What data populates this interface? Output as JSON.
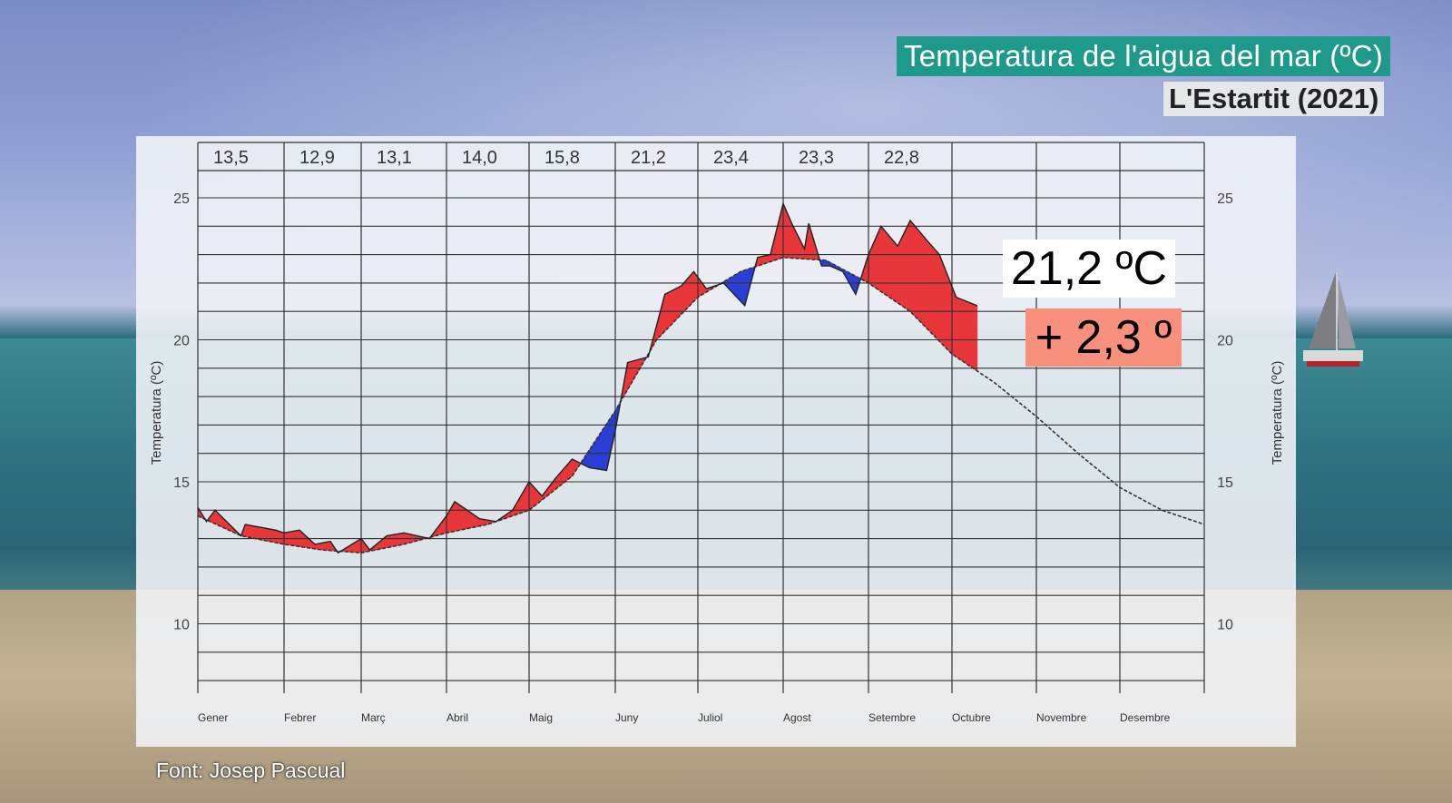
{
  "header": {
    "title": "Temperatura de l'aigua del mar (ºC)",
    "subtitle": "L'Estartit (2021)"
  },
  "callouts": {
    "current_temperature": "21,2 ºC",
    "anomaly": "+ 2,3 º"
  },
  "credit": "Font: Josep Pascual",
  "colors": {
    "title_bg": "#1f9a8a",
    "above_fill": "#e8363a",
    "below_fill": "#2b3fd6",
    "anomaly_bg": "#f7907c"
  },
  "chart_data": {
    "type": "area",
    "title": "Temperatura de l'aigua del mar (ºC) — L'Estartit (2021)",
    "xlabel": "",
    "ylabel": "Temperatura (ºC)",
    "ylim": [
      8,
      27
    ],
    "yticks": [
      10,
      15,
      20,
      25
    ],
    "grid": true,
    "categories": [
      "Gener",
      "Febrer",
      "Març",
      "Abril",
      "Maig",
      "Juny",
      "Juliol",
      "Agost",
      "Setembre",
      "Octubre",
      "Novembre",
      "Desembre"
    ],
    "monthly_means": [
      "13,5",
      "12,9",
      "13,1",
      "14,0",
      "15,8",
      "21,2",
      "23,4",
      "23,3",
      "22,8",
      "",
      "",
      ""
    ],
    "monthly_mean_values": [
      13.5,
      12.9,
      13.1,
      14.0,
      15.8,
      21.2,
      23.4,
      23.3,
      22.8,
      null,
      null,
      null
    ],
    "series": [
      {
        "name": "Climatological mean (dashed)",
        "x_month": [
          0,
          0.5,
          1,
          1.5,
          2,
          2.5,
          3,
          3.5,
          4,
          4.5,
          5,
          5.5,
          6,
          6.5,
          7,
          7.5,
          8,
          8.5,
          9,
          9.5,
          10,
          10.5,
          11,
          11.5,
          12
        ],
        "values": [
          13.8,
          13.1,
          12.8,
          12.6,
          12.5,
          12.8,
          13.2,
          13.5,
          14.0,
          15.2,
          17.5,
          20.0,
          21.5,
          22.4,
          22.9,
          22.8,
          22.0,
          21.0,
          19.5,
          18.5,
          17.3,
          16.0,
          14.8,
          14.0,
          13.5
        ]
      },
      {
        "name": "Observed 2021",
        "x_month": [
          0,
          0.1,
          0.2,
          0.5,
          0.55,
          0.9,
          1.0,
          1.2,
          1.4,
          1.6,
          1.7,
          2.0,
          2.1,
          2.3,
          2.5,
          2.8,
          3.0,
          3.1,
          3.4,
          3.6,
          3.8,
          4.0,
          4.15,
          4.3,
          4.5,
          4.7,
          4.9,
          5.0,
          5.15,
          5.4,
          5.6,
          5.8,
          5.95,
          6.1,
          6.3,
          6.55,
          6.7,
          6.85,
          7.0,
          7.1,
          7.25,
          7.3,
          7.45,
          7.55,
          7.7,
          7.85,
          8.0,
          8.15,
          8.35,
          8.5,
          8.7,
          8.85,
          9.05,
          9.3
        ],
        "values": [
          14.1,
          13.6,
          14.0,
          13.1,
          13.5,
          13.3,
          13.2,
          13.3,
          12.8,
          12.9,
          12.5,
          13.0,
          12.6,
          13.1,
          13.2,
          13.0,
          13.8,
          14.3,
          13.7,
          13.6,
          14.0,
          15.0,
          14.5,
          15.1,
          15.8,
          15.5,
          15.4,
          16.8,
          19.2,
          19.4,
          21.6,
          21.9,
          22.4,
          21.8,
          22.0,
          21.2,
          22.9,
          23.0,
          24.8,
          24.1,
          23.2,
          24.1,
          22.6,
          22.6,
          22.4,
          21.6,
          23.0,
          24.0,
          23.3,
          24.2,
          23.5,
          23.0,
          21.5,
          21.2
        ]
      }
    ],
    "annotations": [
      "21,2 ºC",
      "+ 2,3 º"
    ],
    "legend": "none"
  }
}
